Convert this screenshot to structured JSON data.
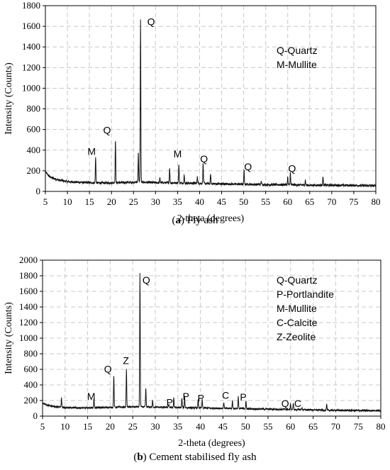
{
  "chart_data": [
    {
      "type": "line",
      "panel_letter": "a",
      "caption": "Fly ash",
      "xlabel": "2-theta (degrees)",
      "ylabel": "Intensity (Counts)",
      "xlim": [
        5,
        80
      ],
      "ylim": [
        0,
        1800
      ],
      "x_ticks": [
        5,
        10,
        15,
        20,
        25,
        30,
        35,
        40,
        45,
        50,
        55,
        60,
        65,
        70,
        75,
        80
      ],
      "y_ticks": [
        0,
        200,
        400,
        600,
        800,
        1000,
        1200,
        1400,
        1600,
        1800
      ],
      "grid": "dashed horizontal and vertical",
      "legend_lines": [
        "Q-Quartz",
        "M-Mullite"
      ],
      "legend_position": "top-right",
      "baseline": [
        [
          5,
          190
        ],
        [
          6,
          140
        ],
        [
          8,
          110
        ],
        [
          10,
          95
        ],
        [
          14,
          85
        ],
        [
          18,
          82
        ],
        [
          22,
          85
        ],
        [
          26,
          90
        ],
        [
          30,
          85
        ],
        [
          35,
          82
        ],
        [
          40,
          78
        ],
        [
          45,
          72
        ],
        [
          50,
          70
        ],
        [
          55,
          65
        ],
        [
          60,
          65
        ],
        [
          65,
          60
        ],
        [
          70,
          60
        ],
        [
          75,
          58
        ],
        [
          80,
          55
        ]
      ],
      "peaks": [
        [
          16.4,
          340
        ],
        [
          20.9,
          505
        ],
        [
          26.1,
          380
        ],
        [
          26.6,
          1660
        ],
        [
          31.0,
          130
        ],
        [
          33.2,
          230
        ],
        [
          35.3,
          265
        ],
        [
          36.5,
          160
        ],
        [
          39.5,
          150
        ],
        [
          40.8,
          270
        ],
        [
          42.5,
          170
        ],
        [
          50.1,
          205
        ],
        [
          54.0,
          100
        ],
        [
          60.0,
          140
        ],
        [
          60.6,
          180
        ],
        [
          64.0,
          110
        ],
        [
          68.0,
          150
        ]
      ],
      "annotations": [
        {
          "text": "Q",
          "x": 29.0,
          "y": 1610
        },
        {
          "text": "Q",
          "x": 19.0,
          "y": 560
        },
        {
          "text": "M",
          "x": 15.5,
          "y": 355
        },
        {
          "text": "M",
          "x": 35.0,
          "y": 330
        },
        {
          "text": "Q",
          "x": 41.0,
          "y": 280
        },
        {
          "text": "Q",
          "x": 51.0,
          "y": 205
        },
        {
          "text": "Q",
          "x": 61.0,
          "y": 190
        }
      ]
    },
    {
      "type": "line",
      "panel_letter": "b",
      "caption": "Cement stabilised fly ash",
      "xlabel": "2-theta (degrees)",
      "ylabel": "Intensity (Counts)",
      "xlim": [
        5,
        80
      ],
      "ylim": [
        0,
        2000
      ],
      "x_ticks": [
        5,
        10,
        15,
        20,
        25,
        30,
        35,
        40,
        45,
        50,
        55,
        60,
        65,
        70,
        75,
        80
      ],
      "y_ticks": [
        0,
        200,
        400,
        600,
        800,
        1000,
        1200,
        1400,
        1600,
        1800,
        2000
      ],
      "grid": "dashed horizontal and vertical",
      "legend_lines": [
        "Q-Quartz",
        "P-Portlandite",
        "M-Mullite",
        "C-Calcite",
        "Z-Zeolite"
      ],
      "legend_position": "top-right",
      "baseline": [
        [
          5,
          170
        ],
        [
          6,
          140
        ],
        [
          8,
          120
        ],
        [
          10,
          110
        ],
        [
          14,
          105
        ],
        [
          18,
          110
        ],
        [
          22,
          115
        ],
        [
          26,
          120
        ],
        [
          30,
          115
        ],
        [
          35,
          110
        ],
        [
          40,
          105
        ],
        [
          45,
          100
        ],
        [
          50,
          95
        ],
        [
          55,
          90
        ],
        [
          60,
          85
        ],
        [
          65,
          80
        ],
        [
          70,
          75
        ],
        [
          75,
          72
        ],
        [
          80,
          70
        ]
      ],
      "peaks": [
        [
          9.2,
          230
        ],
        [
          16.4,
          230
        ],
        [
          20.8,
          520
        ],
        [
          23.6,
          600
        ],
        [
          26.6,
          1840
        ],
        [
          27.9,
          360
        ],
        [
          29.4,
          200
        ],
        [
          33.0,
          150
        ],
        [
          34.1,
          240
        ],
        [
          35.9,
          230
        ],
        [
          36.5,
          250
        ],
        [
          39.5,
          210
        ],
        [
          40.4,
          210
        ],
        [
          45.2,
          175
        ],
        [
          47.1,
          200
        ],
        [
          48.4,
          250
        ],
        [
          50.1,
          190
        ],
        [
          60.0,
          160
        ],
        [
          60.6,
          170
        ],
        [
          62.5,
          110
        ],
        [
          68.0,
          150
        ]
      ],
      "annotations": [
        {
          "text": "Q",
          "x": 28.0,
          "y": 1700
        },
        {
          "text": "Q",
          "x": 19.5,
          "y": 560
        },
        {
          "text": "Z",
          "x": 23.5,
          "y": 670
        },
        {
          "text": "M",
          "x": 15.8,
          "y": 210
        },
        {
          "text": "P",
          "x": 33.2,
          "y": 130
        },
        {
          "text": "P",
          "x": 36.8,
          "y": 210
        },
        {
          "text": "P",
          "x": 40.1,
          "y": 185
        },
        {
          "text": "C",
          "x": 45.6,
          "y": 225
        },
        {
          "text": "P",
          "x": 49.5,
          "y": 200
        },
        {
          "text": "Q",
          "x": 58.8,
          "y": 120
        },
        {
          "text": "C",
          "x": 61.6,
          "y": 120
        }
      ]
    }
  ]
}
